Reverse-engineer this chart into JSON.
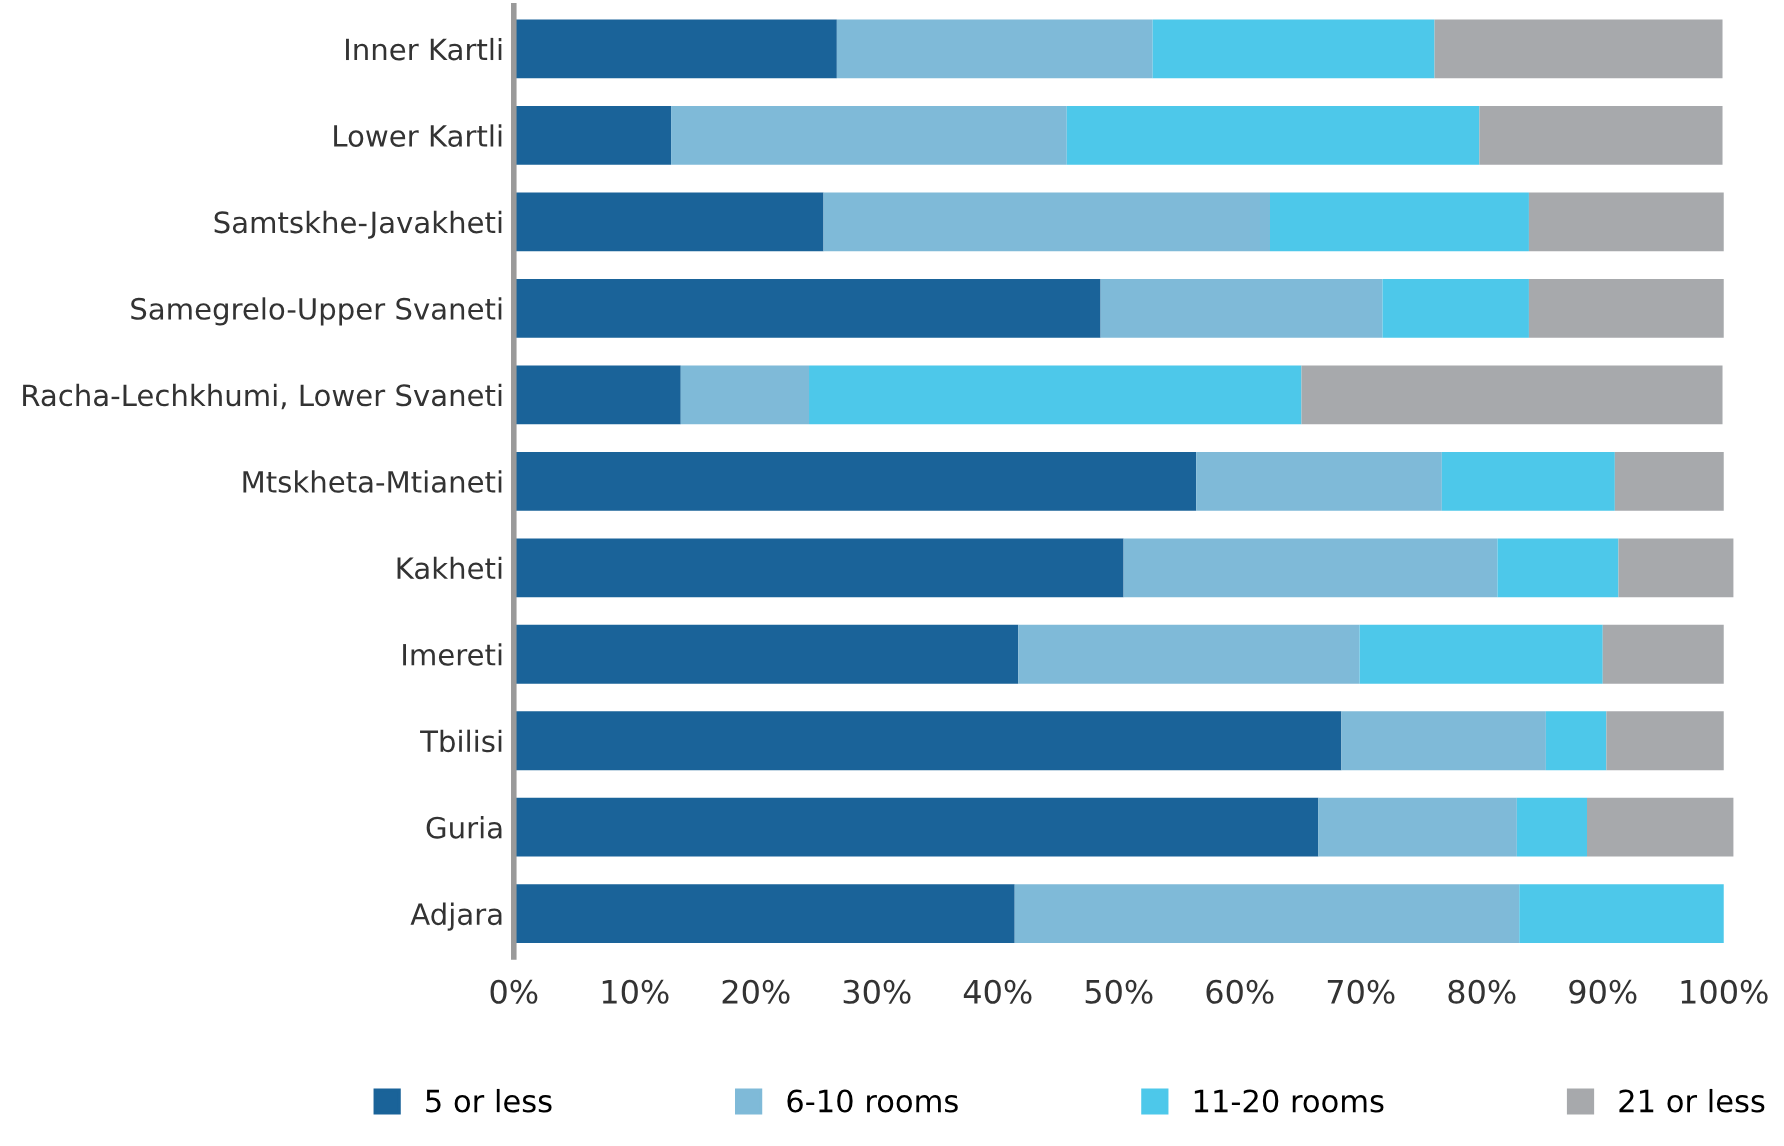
{
  "chart_data": {
    "type": "bar",
    "orientation": "horizontal",
    "stacked": true,
    "categories": [
      "Inner Kartli",
      "Lower Kartli",
      "Samtskhe-Javakheti",
      "Samegrelo-Upper Svaneti",
      "Racha-Lechkhumi, Lower Svaneti",
      "Mtskheta-Mtianeti",
      "Kakheti",
      "Imereti",
      "Tbilisi",
      "Guria",
      "Adjara"
    ],
    "series": [
      {
        "name": "5 or less",
        "color": "#1a6399",
        "values": [
          26.7,
          13.0,
          25.6,
          48.5,
          13.8,
          56.4,
          50.4,
          41.7,
          68.4,
          66.5,
          41.4
        ]
      },
      {
        "name": "6-10 rooms",
        "color": "#7fbad8",
        "values": [
          26.1,
          32.7,
          36.9,
          23.3,
          10.6,
          20.3,
          30.9,
          28.2,
          16.9,
          16.4,
          41.7
        ]
      },
      {
        "name": "11-20 rooms",
        "color": "#4dc8ea",
        "values": [
          23.3,
          34.1,
          21.4,
          12.1,
          40.7,
          14.3,
          10.0,
          20.1,
          5.0,
          5.8,
          16.9
        ]
      },
      {
        "name": "21 or less",
        "color": "#a7a9ac",
        "values": [
          23.8,
          20.1,
          16.1,
          16.1,
          34.8,
          9.0,
          9.5,
          10.0,
          9.7,
          12.1,
          0
        ]
      }
    ],
    "xlim": [
      0,
      101
    ],
    "xticks": [
      {
        "value": 0,
        "label": "0%"
      },
      {
        "value": 10,
        "label": "10%"
      },
      {
        "value": 20,
        "label": "20%"
      },
      {
        "value": 30,
        "label": "30%"
      },
      {
        "value": 40,
        "label": "40%"
      },
      {
        "value": 50,
        "label": "50%"
      },
      {
        "value": 60,
        "label": "60%"
      },
      {
        "value": 70,
        "label": "70%"
      },
      {
        "value": 80,
        "label": "80%"
      },
      {
        "value": 90,
        "label": "90%"
      },
      {
        "value": 100,
        "label": "100%"
      }
    ],
    "grid": false,
    "legend": "bottom"
  }
}
